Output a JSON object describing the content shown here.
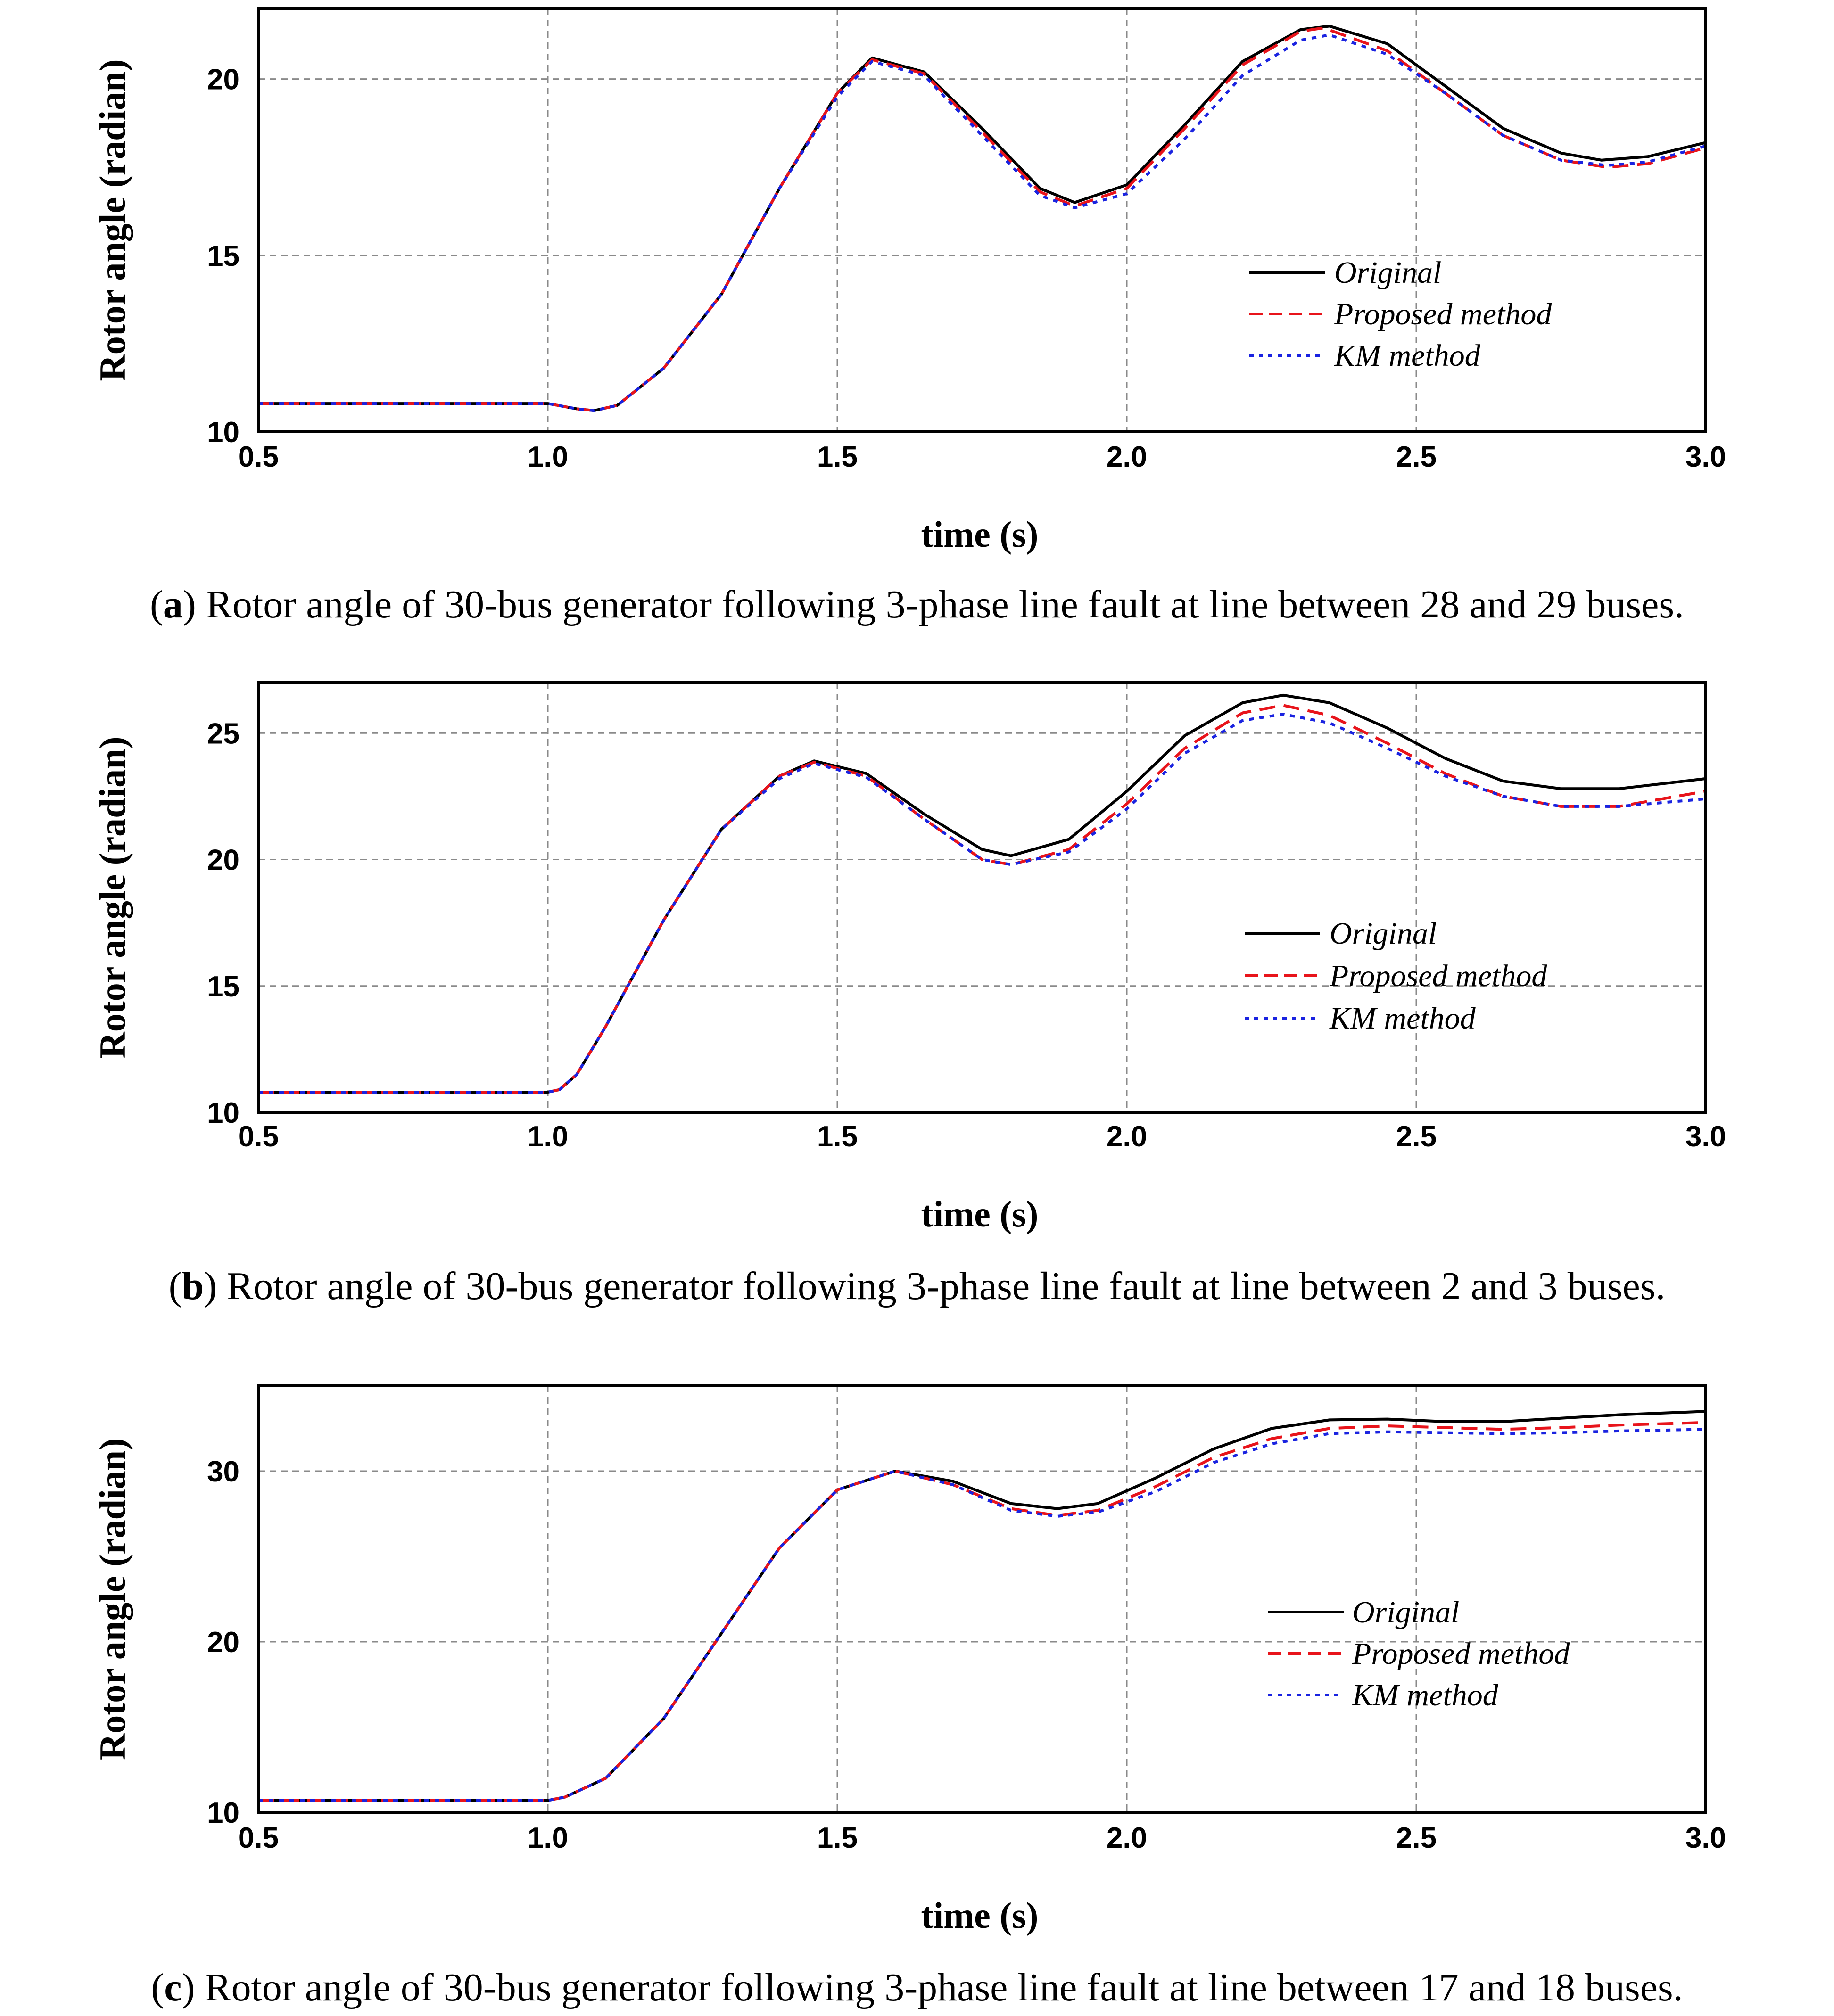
{
  "colors": {
    "original": "#000000",
    "proposed": "#e8141b",
    "km": "#1a23e0",
    "grid": "#8a8a8a"
  },
  "chart_data": [
    {
      "type": "line",
      "xlabel": "time (s)",
      "ylabel": "Rotor angle (radian)",
      "xlim": [
        0.5,
        3.0
      ],
      "ylim": [
        10,
        22
      ],
      "xticks": [
        0.5,
        1.0,
        1.5,
        2.0,
        2.5,
        3.0
      ],
      "yticks": [
        10,
        15,
        20
      ],
      "xtick_labels": [
        "0.5",
        "1.0",
        "1.5",
        "2.0",
        "2.5",
        "3.0"
      ],
      "ytick_labels": [
        "10",
        "15",
        "20"
      ],
      "grid": true,
      "legend": "right-center",
      "caption_letter": "a",
      "caption_text": "Rotor angle of 30-bus generator following 3-phase line fault at line between 28 and 29 buses.",
      "series": [
        {
          "name": "Original",
          "style": "solid",
          "color_key": "original",
          "x": [
            0.5,
            1.0,
            1.05,
            1.08,
            1.12,
            1.2,
            1.3,
            1.4,
            1.5,
            1.56,
            1.65,
            1.75,
            1.85,
            1.91,
            2.0,
            2.1,
            2.2,
            2.3,
            2.35,
            2.45,
            2.55,
            2.65,
            2.75,
            2.82,
            2.9,
            3.0
          ],
          "y": [
            10.8,
            10.8,
            10.65,
            10.6,
            10.75,
            11.8,
            13.9,
            16.9,
            19.6,
            20.6,
            20.2,
            18.6,
            16.9,
            16.5,
            17.0,
            18.7,
            20.5,
            21.4,
            21.5,
            21.0,
            19.8,
            18.6,
            17.9,
            17.7,
            17.8,
            18.2
          ]
        },
        {
          "name": "Proposed method",
          "style": "dashed",
          "color_key": "proposed",
          "x": [
            0.5,
            1.0,
            1.05,
            1.08,
            1.12,
            1.2,
            1.3,
            1.4,
            1.5,
            1.56,
            1.65,
            1.75,
            1.85,
            1.91,
            2.0,
            2.1,
            2.2,
            2.3,
            2.34,
            2.45,
            2.55,
            2.65,
            2.75,
            2.83,
            2.9,
            3.0
          ],
          "y": [
            10.8,
            10.8,
            10.65,
            10.6,
            10.75,
            11.8,
            13.9,
            16.9,
            19.6,
            20.55,
            20.15,
            18.5,
            16.8,
            16.4,
            16.9,
            18.6,
            20.4,
            21.35,
            21.45,
            20.8,
            19.6,
            18.4,
            17.7,
            17.5,
            17.6,
            18.05
          ]
        },
        {
          "name": "KM method",
          "style": "dotted",
          "color_key": "km",
          "x": [
            0.5,
            1.0,
            1.05,
            1.08,
            1.12,
            1.2,
            1.3,
            1.4,
            1.5,
            1.56,
            1.65,
            1.75,
            1.85,
            1.91,
            2.0,
            2.1,
            2.2,
            2.3,
            2.35,
            2.45,
            2.55,
            2.65,
            2.75,
            2.83,
            2.9,
            3.0
          ],
          "y": [
            10.8,
            10.8,
            10.65,
            10.6,
            10.75,
            11.8,
            13.9,
            16.9,
            19.5,
            20.5,
            20.1,
            18.4,
            16.7,
            16.35,
            16.75,
            18.3,
            20.1,
            21.1,
            21.25,
            20.7,
            19.6,
            18.4,
            17.7,
            17.55,
            17.65,
            18.1
          ]
        }
      ]
    },
    {
      "type": "line",
      "xlabel": "time (s)",
      "ylabel": "Rotor angle (radian)",
      "xlim": [
        0.5,
        3.0
      ],
      "ylim": [
        10,
        27
      ],
      "xticks": [
        0.5,
        1.0,
        1.5,
        2.0,
        2.5,
        3.0
      ],
      "yticks": [
        10,
        15,
        20,
        25
      ],
      "xtick_labels": [
        "0.5",
        "1.0",
        "1.5",
        "2.0",
        "2.5",
        "3.0"
      ],
      "ytick_labels": [
        "10",
        "15",
        "20",
        "25"
      ],
      "grid": true,
      "legend": "right-center",
      "caption_letter": "b",
      "caption_text": "Rotor angle of 30-bus generator following 3-phase line fault at line between 2 and 3 buses.",
      "series": [
        {
          "name": "Original",
          "style": "solid",
          "color_key": "original",
          "x": [
            0.5,
            1.0,
            1.02,
            1.05,
            1.1,
            1.2,
            1.3,
            1.4,
            1.46,
            1.55,
            1.65,
            1.75,
            1.8,
            1.9,
            2.0,
            2.1,
            2.2,
            2.27,
            2.35,
            2.45,
            2.55,
            2.65,
            2.75,
            2.85,
            3.0
          ],
          "y": [
            10.8,
            10.8,
            10.9,
            11.5,
            13.4,
            17.6,
            21.2,
            23.3,
            23.9,
            23.4,
            21.8,
            20.4,
            20.15,
            20.8,
            22.7,
            24.9,
            26.2,
            26.5,
            26.2,
            25.2,
            24.0,
            23.1,
            22.8,
            22.8,
            23.2
          ]
        },
        {
          "name": "Proposed method",
          "style": "dashed",
          "color_key": "proposed",
          "x": [
            0.5,
            1.0,
            1.02,
            1.05,
            1.1,
            1.2,
            1.3,
            1.4,
            1.46,
            1.55,
            1.65,
            1.75,
            1.8,
            1.9,
            2.0,
            2.1,
            2.2,
            2.27,
            2.35,
            2.45,
            2.55,
            2.65,
            2.75,
            2.85,
            3.0
          ],
          "y": [
            10.8,
            10.8,
            10.9,
            11.5,
            13.4,
            17.6,
            21.2,
            23.3,
            23.85,
            23.3,
            21.6,
            20.0,
            19.8,
            20.4,
            22.2,
            24.4,
            25.8,
            26.1,
            25.7,
            24.6,
            23.4,
            22.5,
            22.1,
            22.1,
            22.7
          ]
        },
        {
          "name": "KM method",
          "style": "dotted",
          "color_key": "km",
          "x": [
            0.5,
            1.0,
            1.02,
            1.05,
            1.1,
            1.2,
            1.3,
            1.4,
            1.46,
            1.55,
            1.65,
            1.75,
            1.8,
            1.9,
            2.0,
            2.1,
            2.2,
            2.27,
            2.35,
            2.45,
            2.55,
            2.65,
            2.75,
            2.85,
            3.0
          ],
          "y": [
            10.8,
            10.8,
            10.9,
            11.5,
            13.4,
            17.6,
            21.2,
            23.2,
            23.8,
            23.25,
            21.6,
            20.0,
            19.8,
            20.3,
            22.0,
            24.2,
            25.5,
            25.75,
            25.4,
            24.4,
            23.3,
            22.5,
            22.1,
            22.1,
            22.4
          ]
        }
      ]
    },
    {
      "type": "line",
      "xlabel": "time (s)",
      "ylabel": "Rotor angle (radian)",
      "xlim": [
        0.5,
        3.0
      ],
      "ylim": [
        10,
        35
      ],
      "xticks": [
        0.5,
        1.0,
        1.5,
        2.0,
        2.5,
        3.0
      ],
      "yticks": [
        10,
        20,
        30
      ],
      "xtick_labels": [
        "0.5",
        "1.0",
        "1.5",
        "2.0",
        "2.5",
        "3.0"
      ],
      "ytick_labels": [
        "10",
        "20",
        "30"
      ],
      "grid": true,
      "legend": "right-center",
      "caption_letter": "c",
      "caption_text": "Rotor angle of 30-bus generator following 3-phase line fault at line between 17 and 18 buses.",
      "series": [
        {
          "name": "Original",
          "style": "solid",
          "color_key": "original",
          "x": [
            0.5,
            1.0,
            1.03,
            1.1,
            1.2,
            1.3,
            1.4,
            1.5,
            1.6,
            1.7,
            1.8,
            1.88,
            1.95,
            2.05,
            2.15,
            2.25,
            2.35,
            2.45,
            2.55,
            2.65,
            2.75,
            2.85,
            3.0
          ],
          "y": [
            10.7,
            10.7,
            10.9,
            12.0,
            15.5,
            20.5,
            25.5,
            28.9,
            30.0,
            29.4,
            28.1,
            27.8,
            28.1,
            29.6,
            31.3,
            32.5,
            33.0,
            33.05,
            32.9,
            32.9,
            33.1,
            33.3,
            33.5
          ]
        },
        {
          "name": "Proposed method",
          "style": "dashed",
          "color_key": "proposed",
          "x": [
            0.5,
            1.0,
            1.03,
            1.1,
            1.2,
            1.3,
            1.4,
            1.5,
            1.6,
            1.7,
            1.8,
            1.88,
            1.95,
            2.05,
            2.15,
            2.25,
            2.35,
            2.45,
            2.55,
            2.65,
            2.75,
            2.85,
            3.0
          ],
          "y": [
            10.7,
            10.7,
            10.9,
            12.0,
            15.5,
            20.5,
            25.5,
            28.9,
            30.0,
            29.2,
            27.8,
            27.4,
            27.7,
            29.1,
            30.8,
            31.9,
            32.5,
            32.65,
            32.55,
            32.45,
            32.55,
            32.7,
            32.85
          ]
        },
        {
          "name": "KM method",
          "style": "dotted",
          "color_key": "km",
          "x": [
            0.5,
            1.0,
            1.03,
            1.1,
            1.2,
            1.3,
            1.4,
            1.5,
            1.6,
            1.7,
            1.8,
            1.88,
            1.95,
            2.05,
            2.15,
            2.25,
            2.35,
            2.45,
            2.55,
            2.65,
            2.75,
            2.85,
            3.0
          ],
          "y": [
            10.7,
            10.7,
            10.9,
            12.0,
            15.5,
            20.5,
            25.5,
            28.9,
            30.0,
            29.2,
            27.7,
            27.35,
            27.6,
            28.8,
            30.5,
            31.6,
            32.2,
            32.3,
            32.25,
            32.2,
            32.25,
            32.35,
            32.45
          ]
        }
      ]
    }
  ]
}
